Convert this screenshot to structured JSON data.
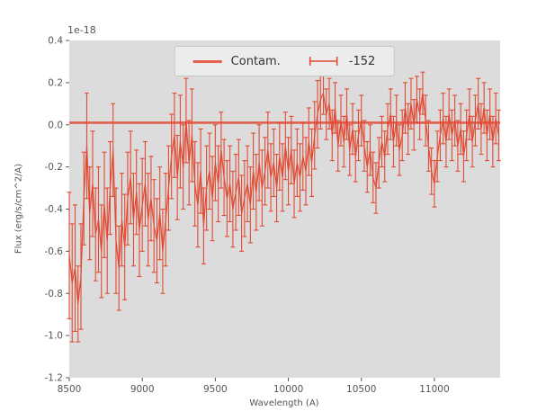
{
  "chart_data": {
    "type": "line",
    "error_bars": true,
    "title": "",
    "offset_label": "1e-18",
    "xlabel": "Wavelength (A)",
    "ylabel": "Flux (erg/s/cm^2/A)",
    "xlim": [
      8500,
      11450
    ],
    "ylim": [
      -1.2,
      0.4
    ],
    "x_ticks": [
      "8500",
      "9000",
      "9500",
      "10000",
      "10500",
      "11000"
    ],
    "y_ticks": [
      "-1.2",
      "-1.0",
      "-0.8",
      "-0.6",
      "-0.4",
      "-0.2",
      "0.0",
      "0.2",
      "0.4"
    ],
    "grid": false,
    "legend_position": "upper center",
    "y_unit_scale": "1e-18",
    "colors": {
      "line": "#E24A33",
      "plot_bg": "#DCDCDC",
      "figure_bg": "#FFFFFF",
      "text": "#555555",
      "legend_bg": "#ECECEC",
      "legend_border": "#C6C6C6"
    },
    "legend": [
      {
        "label": "Contam.",
        "handle": "line"
      },
      {
        "label": "-152",
        "handle": "errorbar"
      }
    ],
    "contam_value": 0.01,
    "series": [
      {
        "name": "-152",
        "points": [
          [
            8500,
            -0.62,
            0.3
          ],
          [
            8520,
            -0.75,
            0.28
          ],
          [
            8540,
            -0.68,
            0.3
          ],
          [
            8560,
            -0.85,
            0.18
          ],
          [
            8580,
            -0.72,
            0.25
          ],
          [
            8600,
            -0.35,
            0.22
          ],
          [
            8620,
            -0.1,
            0.25
          ],
          [
            8640,
            -0.42,
            0.22
          ],
          [
            8660,
            -0.28,
            0.25
          ],
          [
            8680,
            -0.52,
            0.22
          ],
          [
            8700,
            -0.45,
            0.25
          ],
          [
            8720,
            -0.6,
            0.22
          ],
          [
            8740,
            -0.38,
            0.25
          ],
          [
            8760,
            -0.55,
            0.25
          ],
          [
            8780,
            -0.3,
            0.22
          ],
          [
            8800,
            -0.12,
            0.22
          ],
          [
            8820,
            -0.55,
            0.25
          ],
          [
            8840,
            -0.68,
            0.2
          ],
          [
            8860,
            -0.45,
            0.22
          ],
          [
            8880,
            -0.58,
            0.25
          ],
          [
            8900,
            -0.35,
            0.22
          ],
          [
            8920,
            -0.25,
            0.22
          ],
          [
            8940,
            -0.45,
            0.22
          ],
          [
            8960,
            -0.32,
            0.2
          ],
          [
            8980,
            -0.5,
            0.22
          ],
          [
            9000,
            -0.38,
            0.22
          ],
          [
            9020,
            -0.28,
            0.2
          ],
          [
            9040,
            -0.45,
            0.22
          ],
          [
            9060,
            -0.35,
            0.2
          ],
          [
            9080,
            -0.48,
            0.22
          ],
          [
            9100,
            -0.55,
            0.2
          ],
          [
            9120,
            -0.42,
            0.22
          ],
          [
            9140,
            -0.6,
            0.2
          ],
          [
            9160,
            -0.45,
            0.22
          ],
          [
            9180,
            -0.3,
            0.2
          ],
          [
            9200,
            -0.15,
            0.2
          ],
          [
            9220,
            -0.05,
            0.2
          ],
          [
            9240,
            -0.25,
            0.2
          ],
          [
            9260,
            -0.08,
            0.22
          ],
          [
            9280,
            -0.2,
            0.2
          ],
          [
            9300,
            0.02,
            0.2
          ],
          [
            9320,
            -0.18,
            0.2
          ],
          [
            9340,
            -0.05,
            0.22
          ],
          [
            9360,
            -0.28,
            0.2
          ],
          [
            9380,
            -0.38,
            0.2
          ],
          [
            9400,
            -0.22,
            0.2
          ],
          [
            9420,
            -0.48,
            0.18
          ],
          [
            9440,
            -0.3,
            0.2
          ],
          [
            9460,
            -0.22,
            0.18
          ],
          [
            9480,
            -0.35,
            0.2
          ],
          [
            9500,
            -0.18,
            0.18
          ],
          [
            9520,
            -0.28,
            0.18
          ],
          [
            9540,
            -0.12,
            0.18
          ],
          [
            9560,
            -0.25,
            0.18
          ],
          [
            9580,
            -0.35,
            0.18
          ],
          [
            9600,
            -0.28,
            0.18
          ],
          [
            9620,
            -0.4,
            0.18
          ],
          [
            9640,
            -0.32,
            0.18
          ],
          [
            9660,
            -0.25,
            0.18
          ],
          [
            9680,
            -0.42,
            0.18
          ],
          [
            9700,
            -0.35,
            0.18
          ],
          [
            9720,
            -0.28,
            0.18
          ],
          [
            9740,
            -0.38,
            0.18
          ],
          [
            9760,
            -0.22,
            0.18
          ],
          [
            9780,
            -0.32,
            0.18
          ],
          [
            9800,
            -0.18,
            0.18
          ],
          [
            9820,
            -0.3,
            0.18
          ],
          [
            9840,
            -0.22,
            0.16
          ],
          [
            9860,
            -0.12,
            0.18
          ],
          [
            9880,
            -0.25,
            0.16
          ],
          [
            9900,
            -0.18,
            0.16
          ],
          [
            9920,
            -0.3,
            0.16
          ],
          [
            9940,
            -0.15,
            0.16
          ],
          [
            9960,
            -0.25,
            0.16
          ],
          [
            9980,
            -0.1,
            0.16
          ],
          [
            10000,
            -0.22,
            0.16
          ],
          [
            10020,
            -0.12,
            0.16
          ],
          [
            10040,
            -0.28,
            0.16
          ],
          [
            10060,
            -0.18,
            0.16
          ],
          [
            10080,
            -0.25,
            0.16
          ],
          [
            10100,
            -0.15,
            0.16
          ],
          [
            10120,
            -0.22,
            0.16
          ],
          [
            10140,
            -0.08,
            0.16
          ],
          [
            10160,
            -0.18,
            0.16
          ],
          [
            10180,
            -0.05,
            0.16
          ],
          [
            10200,
            0.05,
            0.16
          ],
          [
            10220,
            0.12,
            0.14
          ],
          [
            10240,
            0.15,
            0.1
          ],
          [
            10260,
            0.05,
            0.12
          ],
          [
            10280,
            0.1,
            0.12
          ],
          [
            10300,
            -0.05,
            0.12
          ],
          [
            10320,
            0.08,
            0.12
          ],
          [
            10340,
            -0.1,
            0.12
          ],
          [
            10360,
            0.02,
            0.12
          ],
          [
            10380,
            -0.08,
            0.12
          ],
          [
            10400,
            0.05,
            0.12
          ],
          [
            10420,
            -0.12,
            0.12
          ],
          [
            10440,
            -0.02,
            0.12
          ],
          [
            10460,
            -0.15,
            0.12
          ],
          [
            10480,
            -0.05,
            0.12
          ],
          [
            10500,
            0.02,
            0.12
          ],
          [
            10520,
            -0.1,
            0.12
          ],
          [
            10540,
            -0.2,
            0.12
          ],
          [
            10560,
            -0.12,
            0.12
          ],
          [
            10580,
            -0.25,
            0.12
          ],
          [
            10600,
            -0.3,
            0.12
          ],
          [
            10620,
            -0.18,
            0.12
          ],
          [
            10640,
            -0.08,
            0.12
          ],
          [
            10660,
            -0.15,
            0.12
          ],
          [
            10680,
            -0.02,
            0.12
          ],
          [
            10700,
            0.05,
            0.12
          ],
          [
            10720,
            -0.08,
            0.12
          ],
          [
            10740,
            0.02,
            0.12
          ],
          [
            10760,
            -0.12,
            0.12
          ],
          [
            10780,
            -0.05,
            0.12
          ],
          [
            10800,
            0.08,
            0.12
          ],
          [
            10820,
            -0.02,
            0.12
          ],
          [
            10840,
            0.1,
            0.12
          ],
          [
            10860,
            0.0,
            0.12
          ],
          [
            10880,
            0.12,
            0.11
          ],
          [
            10900,
            0.05,
            0.12
          ],
          [
            10920,
            0.15,
            0.1
          ],
          [
            10940,
            0.02,
            0.12
          ],
          [
            10960,
            -0.1,
            0.12
          ],
          [
            10980,
            -0.22,
            0.11
          ],
          [
            11000,
            -0.28,
            0.11
          ],
          [
            11020,
            -0.15,
            0.12
          ],
          [
            11040,
            -0.05,
            0.12
          ],
          [
            11060,
            0.03,
            0.12
          ],
          [
            11080,
            -0.08,
            0.12
          ],
          [
            11100,
            0.05,
            0.12
          ],
          [
            11120,
            -0.05,
            0.12
          ],
          [
            11140,
            0.02,
            0.12
          ],
          [
            11160,
            -0.1,
            0.12
          ],
          [
            11180,
            -0.02,
            0.12
          ],
          [
            11200,
            -0.15,
            0.12
          ],
          [
            11220,
            -0.05,
            0.12
          ],
          [
            11240,
            0.05,
            0.12
          ],
          [
            11260,
            -0.08,
            0.12
          ],
          [
            11280,
            0.02,
            0.12
          ],
          [
            11300,
            0.1,
            0.12
          ],
          [
            11320,
            -0.02,
            0.12
          ],
          [
            11340,
            0.08,
            0.12
          ],
          [
            11360,
            -0.05,
            0.12
          ],
          [
            11380,
            0.05,
            0.12
          ],
          [
            11400,
            -0.08,
            0.12
          ],
          [
            11420,
            0.03,
            0.12
          ],
          [
            11440,
            -0.05,
            0.12
          ]
        ]
      }
    ]
  }
}
